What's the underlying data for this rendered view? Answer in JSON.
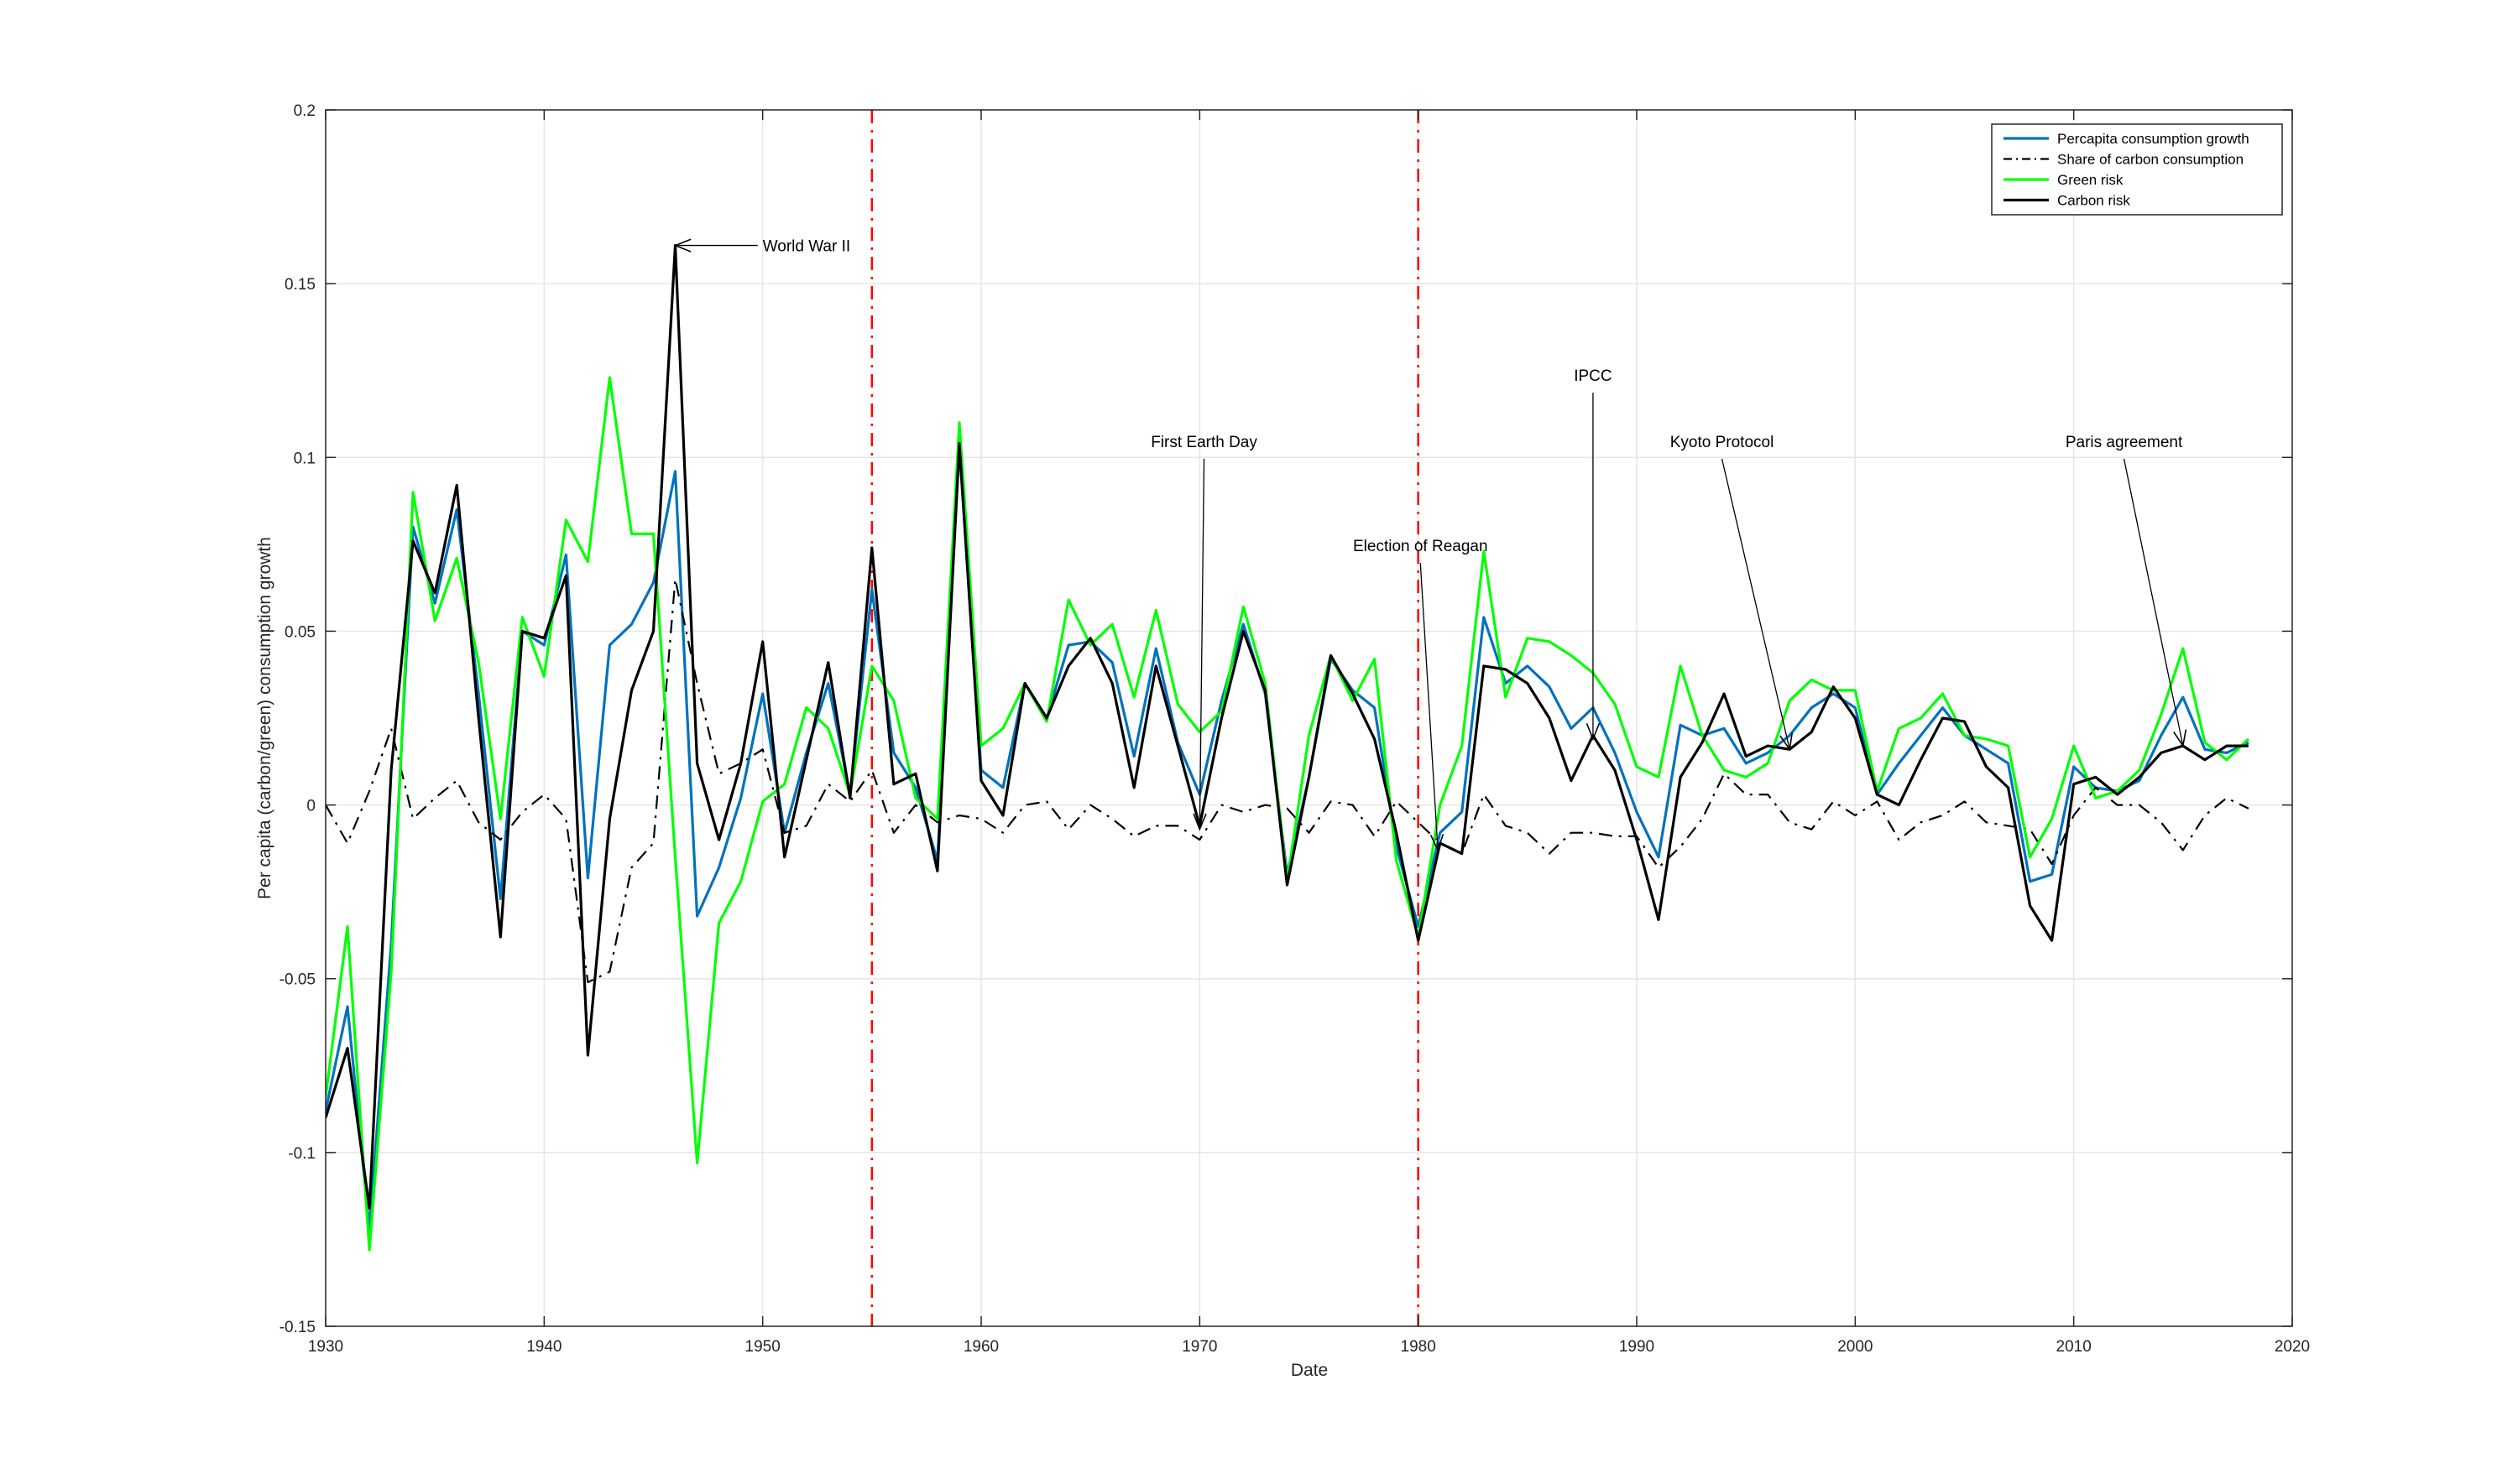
{
  "chart_data": {
    "type": "line",
    "title": "",
    "xlabel": "Date",
    "ylabel": "Per capita (carbon/green) consumption growth",
    "xlim": [
      1930,
      2020
    ],
    "ylim": [
      -0.15,
      0.2
    ],
    "xticks": [
      1930,
      1940,
      1950,
      1960,
      1970,
      1980,
      1990,
      2000,
      2010,
      2020
    ],
    "yticks": [
      -0.15,
      -0.1,
      -0.05,
      0,
      0.05,
      0.1,
      0.15,
      0.2
    ],
    "xtick_labels": [
      "1930",
      "1940",
      "1950",
      "1960",
      "1970",
      "1980",
      "1990",
      "2000",
      "2010",
      "2020"
    ],
    "ytick_labels": [
      "-0.15",
      "-0.1",
      "-0.05",
      "0",
      "0.05",
      "0.1",
      "0.15",
      "0.2"
    ],
    "grid": true,
    "legend_position": "top-right",
    "x": [
      1930,
      1931,
      1932,
      1933,
      1934,
      1935,
      1936,
      1937,
      1938,
      1939,
      1940,
      1941,
      1942,
      1943,
      1944,
      1945,
      1946,
      1947,
      1948,
      1949,
      1950,
      1951,
      1952,
      1953,
      1954,
      1955,
      1956,
      1957,
      1958,
      1959,
      1960,
      1961,
      1962,
      1963,
      1964,
      1965,
      1966,
      1967,
      1968,
      1969,
      1970,
      1971,
      1972,
      1973,
      1974,
      1975,
      1976,
      1977,
      1978,
      1979,
      1980,
      1981,
      1982,
      1983,
      1984,
      1985,
      1986,
      1987,
      1988,
      1989,
      1990,
      1991,
      1992,
      1993,
      1994,
      1995,
      1996,
      1997,
      1998,
      1999,
      2000,
      2001,
      2002,
      2003,
      2004,
      2005,
      2006,
      2007,
      2008,
      2009,
      2010,
      2011,
      2012,
      2013,
      2014,
      2015,
      2016,
      2017,
      2018
    ],
    "series": [
      {
        "name": "Percapita consumption growth",
        "color": "#0072BD",
        "dash": "solid",
        "values": [
          -0.088,
          -0.058,
          -0.122,
          -0.04,
          0.08,
          0.058,
          0.085,
          0.032,
          -0.027,
          0.05,
          0.046,
          0.072,
          -0.021,
          0.046,
          0.052,
          0.064,
          0.096,
          -0.032,
          -0.018,
          0.002,
          0.032,
          -0.008,
          0.015,
          0.035,
          0.003,
          0.062,
          0.015,
          0.005,
          -0.016,
          0.103,
          0.01,
          0.005,
          0.035,
          0.025,
          0.046,
          0.047,
          0.041,
          0.014,
          0.045,
          0.018,
          0.003,
          0.03,
          0.052,
          0.032,
          -0.02,
          0.008,
          0.042,
          0.033,
          0.028,
          -0.012,
          -0.035,
          -0.008,
          -0.002,
          0.054,
          0.035,
          0.04,
          0.034,
          0.022,
          0.028,
          0.015,
          -0.002,
          -0.015,
          0.023,
          0.02,
          0.022,
          0.012,
          0.015,
          0.02,
          0.028,
          0.032,
          0.028,
          0.003,
          0.012,
          0.02,
          0.028,
          0.02,
          0.016,
          0.012,
          -0.022,
          -0.02,
          0.011,
          0.005,
          0.004,
          0.007,
          0.02,
          0.031,
          0.016,
          0.015,
          0.018
        ]
      },
      {
        "name": "Share of carbon consumption",
        "color": "#000000",
        "dash": "dashdot",
        "values": [
          0.0,
          -0.011,
          0.004,
          0.022,
          -0.004,
          0.002,
          0.007,
          -0.005,
          -0.01,
          -0.002,
          0.003,
          -0.004,
          -0.051,
          -0.048,
          -0.018,
          -0.011,
          0.065,
          0.035,
          0.009,
          0.012,
          0.016,
          -0.008,
          -0.006,
          0.006,
          0.001,
          0.01,
          -0.008,
          0.0,
          -0.005,
          -0.003,
          -0.004,
          -0.008,
          0.0,
          0.001,
          -0.007,
          0.0,
          -0.004,
          -0.009,
          -0.006,
          -0.006,
          -0.01,
          0.0,
          -0.002,
          0.0,
          -0.001,
          -0.008,
          0.001,
          0.0,
          -0.009,
          0.001,
          -0.005,
          -0.011,
          -0.014,
          0.003,
          -0.006,
          -0.008,
          -0.014,
          -0.008,
          -0.008,
          -0.009,
          -0.009,
          -0.018,
          -0.012,
          -0.004,
          0.009,
          0.003,
          0.003,
          -0.005,
          -0.007,
          0.001,
          -0.003,
          0.001,
          -0.01,
          -0.005,
          -0.003,
          0.001,
          -0.005,
          -0.006,
          -0.007,
          -0.017,
          -0.003,
          0.005,
          0.0,
          0.0,
          -0.005,
          -0.013,
          -0.003,
          0.002,
          -0.001
        ]
      },
      {
        "name": "Green risk",
        "color": "#00FF00",
        "dash": "solid",
        "values": [
          -0.084,
          -0.035,
          -0.128,
          -0.048,
          0.09,
          0.053,
          0.071,
          0.041,
          -0.004,
          0.054,
          0.037,
          0.082,
          0.07,
          0.123,
          0.078,
          0.078,
          -0.015,
          -0.103,
          -0.034,
          -0.022,
          0.001,
          0.006,
          0.028,
          0.022,
          0.003,
          0.04,
          0.03,
          0.002,
          -0.004,
          0.11,
          0.017,
          0.022,
          0.035,
          0.024,
          0.059,
          0.046,
          0.052,
          0.031,
          0.056,
          0.029,
          0.021,
          0.027,
          0.057,
          0.035,
          -0.022,
          0.02,
          0.043,
          0.03,
          0.042,
          -0.016,
          -0.038,
          0.0,
          0.017,
          0.073,
          0.031,
          0.048,
          0.047,
          0.043,
          0.038,
          0.029,
          0.011,
          0.008,
          0.04,
          0.02,
          0.01,
          0.008,
          0.012,
          0.03,
          0.036,
          0.033,
          0.033,
          0.004,
          0.022,
          0.025,
          0.032,
          0.02,
          0.019,
          0.017,
          -0.015,
          -0.004,
          0.017,
          0.002,
          0.004,
          0.01,
          0.026,
          0.045,
          0.018,
          0.013,
          0.019
        ]
      },
      {
        "name": "Carbon risk",
        "color": "#000000",
        "dash": "solid",
        "values": [
          -0.09,
          -0.07,
          -0.116,
          0.01,
          0.076,
          0.061,
          0.092,
          0.025,
          -0.038,
          0.05,
          0.048,
          0.066,
          -0.072,
          -0.004,
          0.033,
          0.05,
          0.161,
          0.012,
          -0.01,
          0.012,
          0.047,
          -0.015,
          0.013,
          0.041,
          0.002,
          0.074,
          0.006,
          0.009,
          -0.019,
          0.104,
          0.007,
          -0.003,
          0.035,
          0.025,
          0.04,
          0.048,
          0.035,
          0.005,
          0.04,
          0.017,
          -0.006,
          0.025,
          0.05,
          0.033,
          -0.023,
          0.008,
          0.043,
          0.032,
          0.019,
          -0.008,
          -0.039,
          -0.011,
          -0.014,
          0.04,
          0.039,
          0.035,
          0.025,
          0.007,
          0.02,
          0.01,
          -0.01,
          -0.033,
          0.008,
          0.018,
          0.032,
          0.014,
          0.017,
          0.016,
          0.021,
          0.034,
          0.025,
          0.003,
          0.0,
          0.013,
          0.025,
          0.024,
          0.011,
          0.005,
          -0.029,
          -0.039,
          0.006,
          0.008,
          0.003,
          0.008,
          0.015,
          0.017,
          0.013,
          0.017,
          0.017
        ]
      }
    ],
    "vertical_lines": [
      {
        "x": 1955,
        "color": "#FF0000",
        "dash": "dashdot"
      },
      {
        "x": 1980,
        "color": "#FF0000",
        "dash": "dashdot"
      }
    ],
    "annotations": [
      {
        "text": "World War II",
        "text_x": 1950.0,
        "text_y": 0.161,
        "arrow_x": 1946.0,
        "arrow_y": 0.161,
        "anchor": "start"
      },
      {
        "text": "First Earth Day",
        "text_x": 1970.2,
        "text_y": 0.103,
        "arrow_x": 1970.0,
        "arrow_y": -0.007,
        "anchor": "middle"
      },
      {
        "text": "Election of Reagan",
        "text_x": 1980.1,
        "text_y": 0.073,
        "arrow_x": 1980.9,
        "arrow_y": -0.013,
        "anchor": "middle"
      },
      {
        "text": "IPCC",
        "text_x": 1988.0,
        "text_y": 0.122,
        "arrow_x": 1988.0,
        "arrow_y": 0.019,
        "anchor": "middle"
      },
      {
        "text": "Kyoto Protocol",
        "text_x": 1993.9,
        "text_y": 0.103,
        "arrow_x": 1997.0,
        "arrow_y": 0.016,
        "anchor": "middle"
      },
      {
        "text": "Paris agreement",
        "text_x": 2012.3,
        "text_y": 0.103,
        "arrow_x": 2015.0,
        "arrow_y": 0.017,
        "anchor": "middle"
      }
    ]
  }
}
